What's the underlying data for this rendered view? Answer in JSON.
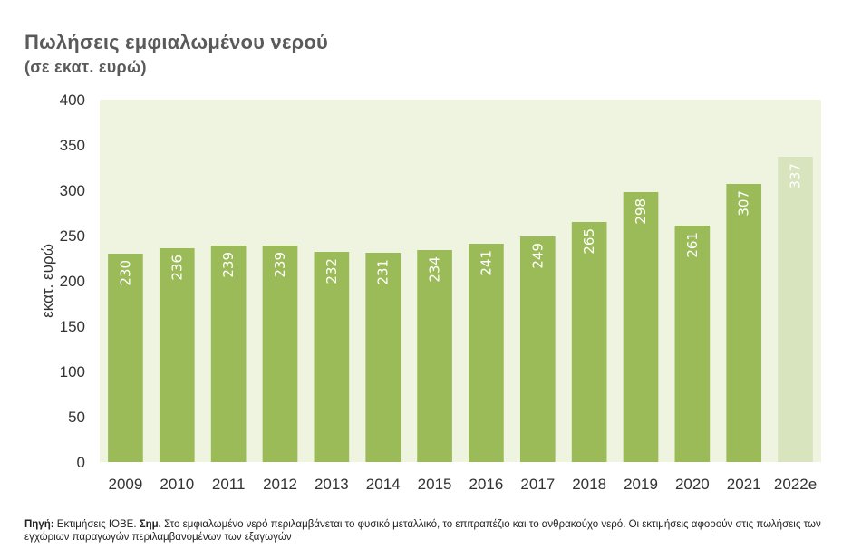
{
  "footer": {
    "source_label": "Πηγή:",
    "source_text": " Εκτιμήσεις ΙΟΒΕ. ",
    "note_label": "Σημ.",
    "note_text": " Στο εμφιαλωμένο νερό περιλαμβάνεται το φυσικό μεταλλικό, το επιτραπέζιο και το ανθρακούχο νερό. Οι εκτιμήσεις αφορούν στις πωλήσεις των εγχώριων παραγωγών περιλαμβανομένων των εξαγωγών"
  },
  "colors": {
    "plot_background": "#eef4e0",
    "bar": "#9bbb59",
    "bar_estimate": "#d7e4bd",
    "text": "#333333",
    "title": "#5a5a5a"
  },
  "chart_data": {
    "type": "bar",
    "title": "Πωλήσεις εμφιαλωμένου νερού",
    "subtitle": "(σε εκατ. ευρώ)",
    "xlabel": "",
    "ylabel": "εκατ. ευρώ",
    "ylim": [
      0,
      400
    ],
    "yticks": [
      0,
      50,
      100,
      150,
      200,
      250,
      300,
      350,
      400
    ],
    "grid": false,
    "legend": "none",
    "categories": [
      "2009",
      "2010",
      "2011",
      "2012",
      "2013",
      "2014",
      "2015",
      "2016",
      "2017",
      "2018",
      "2019",
      "2020",
      "2021",
      "2022e"
    ],
    "values": [
      230,
      236,
      239,
      239,
      232,
      231,
      234,
      241,
      249,
      265,
      298,
      261,
      307,
      337
    ],
    "estimate_categories": [
      "2022e"
    ]
  }
}
